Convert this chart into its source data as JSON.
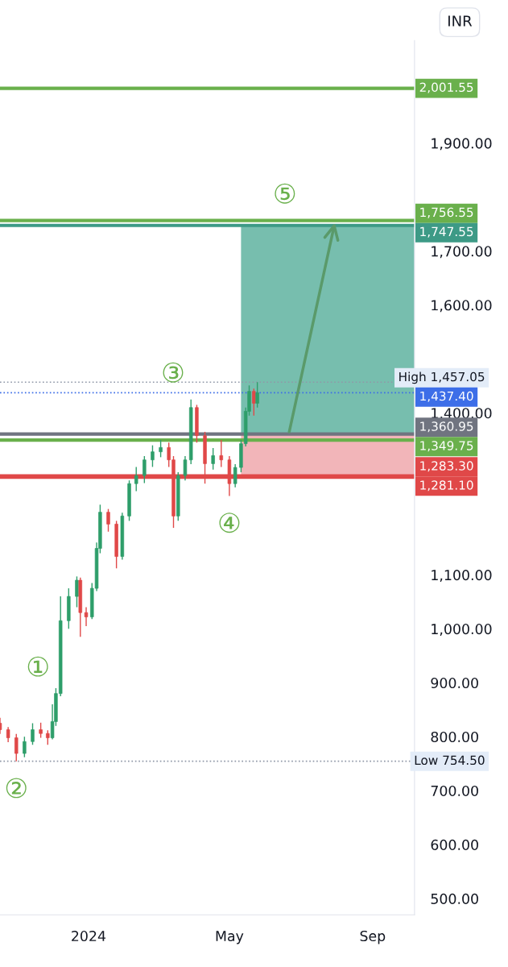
{
  "chart_data": {
    "type": "candlestick",
    "x": [
      "2023-10-17",
      "2023-10-24",
      "2023-10-31",
      "2023-11-07",
      "2023-11-14",
      "2023-11-21",
      "2023-11-27",
      "2023-12-01",
      "2023-12-04",
      "2023-12-08",
      "2023-12-15",
      "2023-12-22",
      "2023-12-25",
      "2023-12-30",
      "2024-01-04",
      "2024-01-08",
      "2024-01-11",
      "2024-01-18",
      "2024-01-25",
      "2024-01-30",
      "2024-02-05",
      "2024-02-11",
      "2024-02-18",
      "2024-02-25",
      "2024-03-03",
      "2024-03-10",
      "2024-03-14",
      "2024-03-18",
      "2024-03-24",
      "2024-03-29",
      "2024-04-03",
      "2024-04-10",
      "2024-04-17",
      "2024-04-24",
      "2024-05-01",
      "2024-05-06",
      "2024-05-11",
      "2024-05-15",
      "2024-05-18",
      "2024-05-22",
      "2024-05-25"
    ],
    "ohlc": [
      [
        825,
        835,
        805,
        813
      ],
      [
        813,
        818,
        790,
        798
      ],
      [
        798,
        805,
        754.5,
        769
      ],
      [
        769,
        800,
        762,
        791
      ],
      [
        791,
        825,
        785,
        813
      ],
      [
        813,
        826,
        798,
        806
      ],
      [
        806,
        812,
        785,
        798
      ],
      [
        798,
        860,
        795,
        828
      ],
      [
        828,
        890,
        820,
        880
      ],
      [
        880,
        1060,
        875,
        1015
      ],
      [
        1015,
        1075,
        1000,
        1060
      ],
      [
        1060,
        1097,
        1040,
        1090
      ],
      [
        1090,
        1095,
        985,
        1030
      ],
      [
        1030,
        1040,
        1005,
        1022
      ],
      [
        1022,
        1085,
        1018,
        1075
      ],
      [
        1075,
        1160,
        1070,
        1149
      ],
      [
        1149,
        1230,
        1140,
        1216
      ],
      [
        1216,
        1222,
        1180,
        1194
      ],
      [
        1194,
        1200,
        1112,
        1134
      ],
      [
        1134,
        1215,
        1128,
        1209
      ],
      [
        1209,
        1275,
        1200,
        1269
      ],
      [
        1269,
        1300,
        1255,
        1284
      ],
      [
        1284,
        1320,
        1270,
        1313
      ],
      [
        1313,
        1340,
        1300,
        1328
      ],
      [
        1328,
        1350,
        1318,
        1336
      ],
      [
        1336,
        1345,
        1300,
        1313
      ],
      [
        1313,
        1320,
        1187,
        1209
      ],
      [
        1209,
        1290,
        1200,
        1284
      ],
      [
        1284,
        1320,
        1275,
        1313
      ],
      [
        1313,
        1425,
        1305,
        1410
      ],
      [
        1410,
        1415,
        1345,
        1358
      ],
      [
        1358,
        1365,
        1269,
        1306
      ],
      [
        1306,
        1335,
        1295,
        1321
      ],
      [
        1321,
        1350,
        1300,
        1313
      ],
      [
        1313,
        1320,
        1246,
        1269
      ],
      [
        1269,
        1305,
        1262,
        1299
      ],
      [
        1299,
        1350,
        1290,
        1343
      ],
      [
        1343,
        1410,
        1338,
        1403
      ],
      [
        1403,
        1451,
        1395,
        1440
      ],
      [
        1440,
        1445,
        1395,
        1418
      ],
      [
        1418,
        1457.05,
        1410,
        1437.4
      ]
    ],
    "xlim": [
      "2023-10-17",
      "2024-10-07"
    ],
    "xticks": [
      {
        "value": "2024-01-01",
        "label": "2024"
      },
      {
        "value": "2024-05-01",
        "label": "May"
      },
      {
        "value": "2024-09-01",
        "label": "Sep"
      }
    ],
    "ylim": [
      470,
      2090
    ],
    "yticks": [
      {
        "value": 500,
        "label": "500.00"
      },
      {
        "value": 600,
        "label": "600.00"
      },
      {
        "value": 700,
        "label": "700.00"
      },
      {
        "value": 800,
        "label": "800.00"
      },
      {
        "value": 900,
        "label": "900.00"
      },
      {
        "value": 1000,
        "label": "1,000.00"
      },
      {
        "value": 1100,
        "label": "1,100.00"
      },
      {
        "value": 1400,
        "label": "1,400.00"
      },
      {
        "value": 1600,
        "label": "1,600.00"
      },
      {
        "value": 1700,
        "label": "1,700.00"
      },
      {
        "value": 1900,
        "label": "1,900.00"
      }
    ],
    "ref_lines": [
      {
        "axis": "y",
        "value": 2001.55,
        "label": "2,001.55",
        "color": "#6ab04c",
        "line_style": "solid"
      },
      {
        "axis": "y",
        "value": 1756.55,
        "label": "1,756.55",
        "color": "#6ab04c",
        "line_style": "solid"
      },
      {
        "axis": "y",
        "value": 1747.55,
        "label": "1,747.55",
        "color": "#3d9a86",
        "line_style": "solid"
      },
      {
        "axis": "y",
        "value": 1457.05,
        "label": "High 1,457.05",
        "color": "#9098a8",
        "line_style": "dotted"
      },
      {
        "axis": "y",
        "value": 1437.4,
        "label": "1,437.40",
        "color": "#3d6ee8",
        "line_style": "dotted"
      },
      {
        "axis": "y",
        "value": 1360.95,
        "label": "1,360.95",
        "color": "#707480",
        "line_style": "solid"
      },
      {
        "axis": "y",
        "value": 1349.75,
        "label": "1,349.75",
        "color": "#6ab04c",
        "line_style": "solid"
      },
      {
        "axis": "y",
        "value": 1283.3,
        "label": "1,283.30",
        "color": "#e04848",
        "line_style": "solid"
      },
      {
        "axis": "y",
        "value": 1281.1,
        "label": "1,281.10",
        "color": "#e04848",
        "line_style": "solid"
      },
      {
        "axis": "y",
        "value": 754.5,
        "label": "Low 754.50",
        "color": "#9098a8",
        "line_style": "dotted"
      }
    ],
    "bands": [
      {
        "axis": "y",
        "from": 1360.95,
        "to": 1747.55,
        "color": "#5fb3a0"
      },
      {
        "axis": "y",
        "from": 1281.1,
        "to": 1360.95,
        "color": "#f0a8ad"
      }
    ],
    "annotations": [
      {
        "text": "①",
        "x": "2023-12-04",
        "y": 880
      },
      {
        "text": "②",
        "x": "2023-10-31",
        "y": 754.5
      },
      {
        "text": "③",
        "x": "2024-03-29",
        "y": 1425
      },
      {
        "text": "④",
        "x": "2024-05-01",
        "y": 1246
      },
      {
        "text": "⑤",
        "x": "2024-07-03",
        "y": 1756.55
      },
      "INR"
    ],
    "grid": false
  }
}
